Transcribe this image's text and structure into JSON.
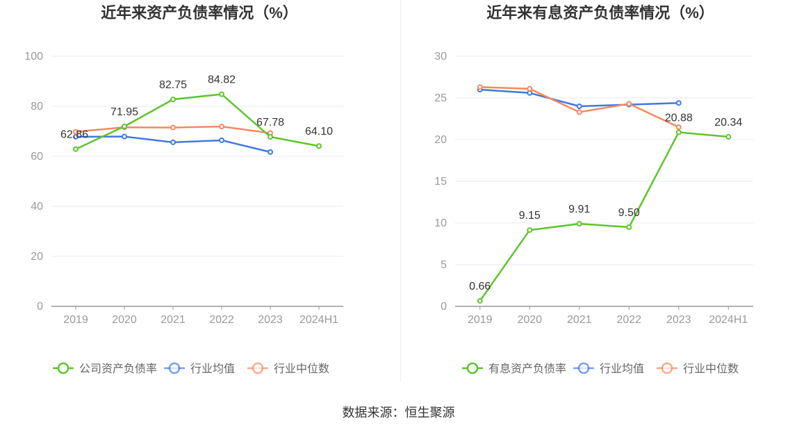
{
  "source_text": "数据来源：恒生聚源",
  "chart_data": [
    {
      "type": "line",
      "title": "近年来资产负债率情况（%）",
      "categories": [
        "2019",
        "2020",
        "2021",
        "2022",
        "2023",
        "2024H1"
      ],
      "ylim": [
        0,
        100
      ],
      "yticks": [
        0,
        20,
        40,
        60,
        80,
        100
      ],
      "grid": true,
      "legend_position": "bottom",
      "series": [
        {
          "name": "公司资产负债率",
          "color": "#5cc52b",
          "values": [
            62.86,
            71.95,
            82.75,
            84.82,
            67.78,
            64.1
          ],
          "labels": [
            "62.86",
            "71.95",
            "82.75",
            "84.82",
            "67.78",
            "64.10"
          ]
        },
        {
          "name": "行业均值",
          "color": "#3f78e0",
          "values": [
            67.8,
            67.9,
            65.6,
            66.4,
            61.7,
            null
          ],
          "labels": []
        },
        {
          "name": "行业中位数",
          "color": "#f5895c",
          "values": [
            69.8,
            71.6,
            71.5,
            71.9,
            69.3,
            null
          ],
          "labels": []
        }
      ]
    },
    {
      "type": "line",
      "title": "近年来有息资产负债率情况（%）",
      "categories": [
        "2019",
        "2020",
        "2021",
        "2022",
        "2023",
        "2024H1"
      ],
      "ylim": [
        0,
        30
      ],
      "yticks": [
        0,
        5,
        10,
        15,
        20,
        25,
        30
      ],
      "grid": true,
      "legend_position": "bottom",
      "series": [
        {
          "name": "有息资产负债率",
          "color": "#5cc52b",
          "values": [
            0.66,
            9.15,
            9.91,
            9.5,
            20.88,
            20.34
          ],
          "labels": [
            "0.66",
            "9.15",
            "9.91",
            "9.50",
            "20.88",
            "20.34"
          ]
        },
        {
          "name": "行业均值",
          "color": "#3f78e0",
          "values": [
            26.0,
            25.6,
            24.0,
            24.2,
            24.4,
            null
          ],
          "labels": []
        },
        {
          "name": "行业中位数",
          "color": "#f5895c",
          "values": [
            26.3,
            26.1,
            23.3,
            24.3,
            21.5,
            null
          ],
          "labels": []
        }
      ]
    }
  ]
}
